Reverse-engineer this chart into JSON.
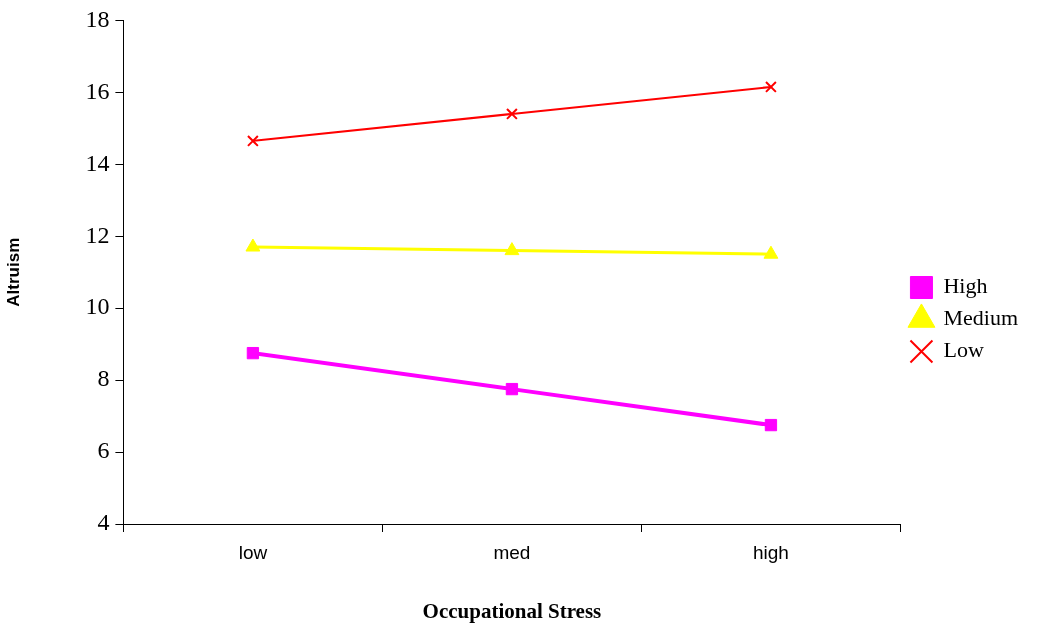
{
  "chart_data": {
    "type": "line",
    "xlabel": "Occupational Stress",
    "ylabel": "Altruism",
    "categories": [
      "low",
      "med",
      "high"
    ],
    "series": [
      {
        "name": "High",
        "color": "#ff00ff",
        "marker": "square",
        "values": [
          8.75,
          7.75,
          6.75
        ]
      },
      {
        "name": "Medium",
        "color": "#ffff00",
        "marker": "triangle",
        "values": [
          11.7,
          11.6,
          11.5
        ]
      },
      {
        "name": "Low",
        "color": "#ff0000",
        "marker": "cross",
        "values": [
          14.65,
          15.4,
          16.15
        ]
      }
    ],
    "ylim": [
      4,
      18
    ],
    "yticks": [
      4,
      6,
      8,
      10,
      12,
      14,
      16,
      18
    ],
    "grid": false,
    "legend": "right"
  }
}
